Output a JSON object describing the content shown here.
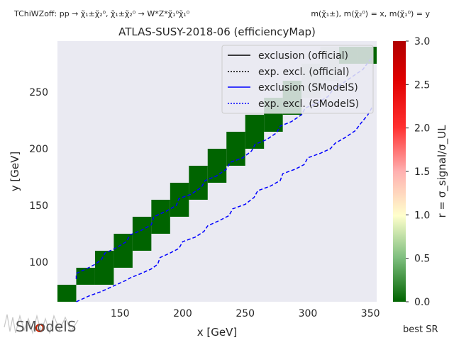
{
  "header": {
    "process": "TChiWZoff: pp → χ̃₁±χ̃₂⁰, χ̃₁±χ̃₂⁰ → W*Z*χ̃₁⁰χ̃₁⁰",
    "mass_note": "m(χ̃₁±), m(χ̃₂⁰) = x, m(χ̃₁⁰) = y"
  },
  "footer": {
    "logo_text": "SModelS",
    "best_sr": "best SR"
  },
  "colors": {
    "plot_bg": "#eaeaf2",
    "cell": "#006400",
    "cell_light": "#c9d8c6",
    "smodels_line": "#0000ff",
    "official_line": "#000000"
  },
  "chart_data": {
    "type": "heatmap",
    "title": "ATLAS-SUSY-2018-06 (efficiencyMap)",
    "xlabel": "x [GeV]",
    "ylabel": "y [GeV]",
    "xlim": [
      100,
      355
    ],
    "ylim": [
      65,
      295
    ],
    "xticks": [
      150,
      200,
      250,
      300,
      350
    ],
    "yticks": [
      100,
      150,
      200,
      250
    ],
    "grid": false,
    "cell_size": [
      15,
      15
    ],
    "cells": [
      {
        "x": 107.5,
        "y": 72.5,
        "r": 0.0
      },
      {
        "x": 122.5,
        "y": 87.5,
        "r": 0.0
      },
      {
        "x": 137.5,
        "y": 102.5,
        "r": 0.0
      },
      {
        "x": 152.5,
        "y": 117.5,
        "r": 0.0
      },
      {
        "x": 167.5,
        "y": 132.5,
        "r": 0.0
      },
      {
        "x": 182.5,
        "y": 147.5,
        "r": 0.0
      },
      {
        "x": 197.5,
        "y": 162.5,
        "r": 0.0
      },
      {
        "x": 212.5,
        "y": 177.5,
        "r": 0.0
      },
      {
        "x": 227.5,
        "y": 192.5,
        "r": 0.0
      },
      {
        "x": 242.5,
        "y": 207.5,
        "r": 0.0
      },
      {
        "x": 257.5,
        "y": 222.5,
        "r": 0.0
      },
      {
        "x": 272.5,
        "y": 237.5,
        "r": 0.0
      },
      {
        "x": 287.5,
        "y": 252.5,
        "r": 0.0
      },
      {
        "x": 302.5,
        "y": 267.5,
        "r": 0.0
      },
      {
        "x": 317.5,
        "y": 282.5,
        "r": 0.0
      },
      {
        "x": 137.5,
        "y": 87.5,
        "r": 0.0
      },
      {
        "x": 152.5,
        "y": 102.5,
        "r": 0.0
      },
      {
        "x": 167.5,
        "y": 117.5,
        "r": 0.0
      },
      {
        "x": 182.5,
        "y": 132.5,
        "r": 0.0
      },
      {
        "x": 197.5,
        "y": 147.5,
        "r": 0.0
      },
      {
        "x": 212.5,
        "y": 162.5,
        "r": 0.0
      },
      {
        "x": 227.5,
        "y": 177.5,
        "r": 0.0
      },
      {
        "x": 242.5,
        "y": 192.5,
        "r": 0.0
      },
      {
        "x": 257.5,
        "y": 207.5,
        "r": 0.0
      },
      {
        "x": 272.5,
        "y": 222.5,
        "r": 0.0
      },
      {
        "x": 287.5,
        "y": 237.5,
        "r": 0.0
      },
      {
        "x": 302.5,
        "y": 252.5,
        "r": 0.0
      },
      {
        "x": 317.5,
        "y": 267.5,
        "r": 0.0
      },
      {
        "x": 332.5,
        "y": 282.5,
        "r": 0.0
      },
      {
        "x": 347.5,
        "y": 282.5,
        "r": 0.0
      }
    ],
    "legend": {
      "position": "top-right",
      "entries": [
        {
          "label": "exclusion (official)",
          "color": "#000000",
          "style": "solid"
        },
        {
          "label": "exp. excl. (official)",
          "color": "#000000",
          "style": "dotted"
        },
        {
          "label": "exclusion (SModelS)",
          "color": "#0000ff",
          "style": "solid"
        },
        {
          "label": "exp. excl. (SModelS)",
          "color": "#0000ff",
          "style": "dotted"
        }
      ]
    },
    "lines": [
      {
        "name": "exp. excl. (SModelS)",
        "style": "dashed",
        "color": "#0000ff",
        "points": [
          [
            115,
            85
          ],
          [
            115,
            90
          ],
          [
            123,
            94
          ],
          [
            130,
            98
          ],
          [
            135,
            102
          ],
          [
            138,
            108
          ],
          [
            146,
            112
          ],
          [
            155,
            118
          ],
          [
            158,
            124
          ],
          [
            167,
            128
          ],
          [
            175,
            133
          ],
          [
            177,
            140
          ],
          [
            187,
            145
          ],
          [
            195,
            150
          ],
          [
            197,
            156
          ],
          [
            207,
            160
          ],
          [
            215,
            166
          ],
          [
            218,
            172
          ],
          [
            227,
            176
          ],
          [
            235,
            182
          ],
          [
            238,
            188
          ],
          [
            248,
            192
          ],
          [
            255,
            198
          ],
          [
            258,
            204
          ],
          [
            267,
            208
          ],
          [
            275,
            214
          ],
          [
            278,
            220
          ],
          [
            287,
            224
          ],
          [
            295,
            230
          ],
          [
            298,
            236
          ],
          [
            307,
            240
          ],
          [
            316,
            246
          ],
          [
            320,
            252
          ],
          [
            328,
            258
          ],
          [
            336,
            264
          ],
          [
            344,
            270
          ],
          [
            352,
            282
          ]
        ]
      },
      {
        "name": "exp. excl. (SModelS)",
        "style": "dashed",
        "color": "#0000ff",
        "points": [
          [
            115,
            65
          ],
          [
            125,
            70
          ],
          [
            135,
            74
          ],
          [
            145,
            79
          ],
          [
            155,
            84
          ],
          [
            158,
            86
          ],
          [
            167,
            90
          ],
          [
            175,
            94
          ],
          [
            180,
            98
          ],
          [
            182,
            104
          ],
          [
            190,
            108
          ],
          [
            197,
            112
          ],
          [
            200,
            118
          ],
          [
            210,
            122
          ],
          [
            217,
            127
          ],
          [
            220,
            132
          ],
          [
            230,
            137
          ],
          [
            237,
            141
          ],
          [
            240,
            147
          ],
          [
            250,
            151
          ],
          [
            257,
            157
          ],
          [
            260,
            163
          ],
          [
            270,
            167
          ],
          [
            278,
            172
          ],
          [
            280,
            178
          ],
          [
            290,
            182
          ],
          [
            297,
            186
          ],
          [
            300,
            192
          ],
          [
            310,
            196
          ],
          [
            318,
            200
          ],
          [
            322,
            205
          ],
          [
            330,
            210
          ],
          [
            338,
            216
          ],
          [
            342,
            222
          ],
          [
            348,
            230
          ],
          [
            352,
            238
          ]
        ]
      }
    ],
    "colorbar": {
      "label": "r = σ_signal/σ_UL",
      "range": [
        0.0,
        3.0
      ],
      "ticks": [
        "0.0",
        "0.5",
        "1.0",
        "1.5",
        "2.0",
        "2.5",
        "3.0"
      ]
    }
  }
}
